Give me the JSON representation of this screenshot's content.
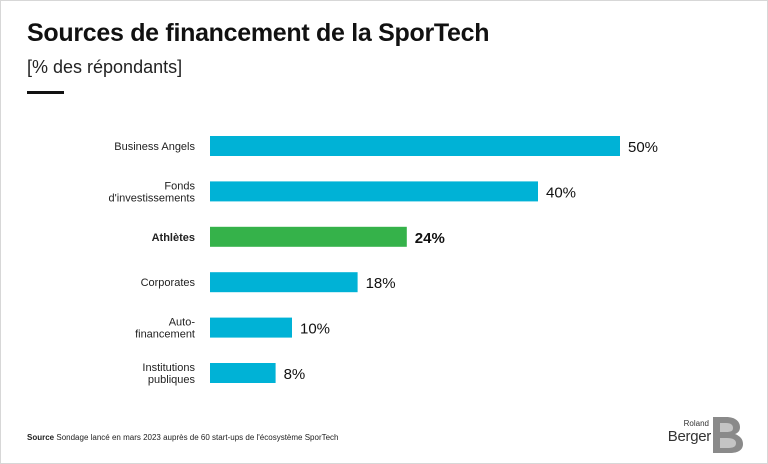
{
  "header": {
    "title": "Sources de financement de la SporTech",
    "subtitle": "[% des répondants]"
  },
  "chart_data": {
    "type": "bar",
    "orientation": "horizontal",
    "categories": [
      [
        "Business Angels"
      ],
      [
        "Fonds",
        "d'investissements"
      ],
      [
        "Athlètes"
      ],
      [
        "Corporates"
      ],
      [
        "Auto-",
        "financement"
      ],
      [
        "Institutions",
        "publiques"
      ]
    ],
    "values": [
      50,
      40,
      24,
      18,
      10,
      8
    ],
    "value_labels": [
      "50%",
      "40%",
      "24%",
      "18%",
      "10%",
      "8%"
    ],
    "highlight_index": 2,
    "colors": {
      "default": "#00b2d6",
      "highlight": "#35b24a"
    },
    "xlim": [
      0,
      50
    ],
    "grid": false,
    "legend": "none"
  },
  "footer": {
    "source_label": "Source",
    "source_text": "Sondage lancé en mars 2023 auprès de 60 start-ups de l'écosystème SporTech"
  },
  "logo": {
    "line1": "Roland",
    "line2": "Berger"
  }
}
